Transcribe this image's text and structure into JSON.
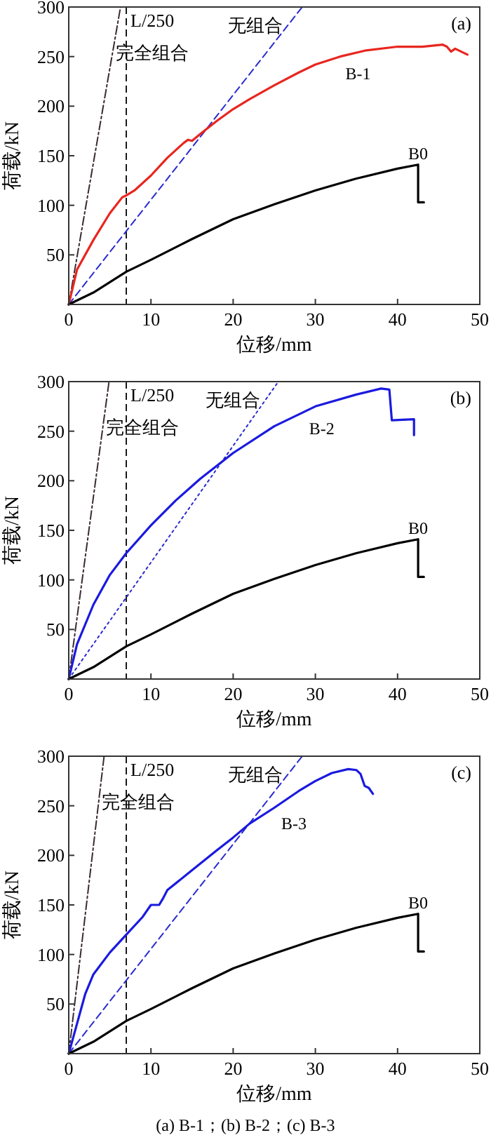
{
  "chart_data": [
    {
      "type": "line",
      "xlabel": "位移/mm",
      "ylabel": "荷载/kN",
      "xlim": [
        0,
        50
      ],
      "ylim": [
        0,
        300
      ],
      "xticks": [
        0,
        10,
        20,
        30,
        40,
        50
      ],
      "yticks": [
        50,
        100,
        150,
        200,
        250,
        300
      ],
      "grid": false,
      "marker": "none",
      "annotations": [
        "(a)"
      ],
      "ref_lines": [
        {
          "axis": "x",
          "value": 7,
          "label": "L/250",
          "color": "#000000",
          "line_style": "dashed"
        }
      ],
      "series": [
        {
          "name": "完全组合",
          "color": "#3a2a35",
          "line_style": "dashdot",
          "x": [
            0,
            6.3
          ],
          "values": [
            0,
            300
          ]
        },
        {
          "name": "无组合",
          "color": "#2a2ad0",
          "line_style": "dashed",
          "x": [
            0,
            28.4
          ],
          "values": [
            0,
            300
          ]
        },
        {
          "name": "B-1",
          "color": "#e8261f",
          "line_style": "solid",
          "x": [
            0,
            1,
            3,
            5,
            6.5,
            7,
            8,
            10,
            12,
            14,
            14.5,
            15,
            16,
            18,
            20,
            22,
            25,
            28,
            30,
            33,
            36,
            40,
            43,
            45.5,
            46,
            46.5,
            47,
            48.5
          ],
          "values": [
            0,
            35,
            65,
            92,
            108,
            110,
            115,
            130,
            148,
            163,
            166,
            165,
            172,
            185,
            197,
            207,
            221,
            234,
            242,
            250,
            256,
            260,
            260,
            262,
            260,
            255,
            258,
            252
          ]
        },
        {
          "name": "B0",
          "color": "#000000",
          "line_style": "solid",
          "x": [
            0,
            3,
            7,
            10,
            15,
            20,
            25,
            30,
            35,
            40,
            42.5,
            42.5,
            43.2
          ],
          "values": [
            0,
            12,
            33,
            45,
            66,
            86,
            101,
            115,
            127,
            137,
            141,
            103,
            103
          ]
        }
      ]
    },
    {
      "type": "line",
      "xlabel": "位移/mm",
      "ylabel": "荷载/kN",
      "xlim": [
        0,
        50
      ],
      "ylim": [
        0,
        300
      ],
      "xticks": [
        0,
        10,
        20,
        30,
        40,
        50
      ],
      "yticks": [
        50,
        100,
        150,
        200,
        250,
        300
      ],
      "grid": false,
      "marker": "none",
      "annotations": [
        "(b)"
      ],
      "ref_lines": [
        {
          "axis": "x",
          "value": 7,
          "label": "L/250",
          "color": "#000000",
          "line_style": "dashed"
        }
      ],
      "series": [
        {
          "name": "完全组合",
          "color": "#3a2a35",
          "line_style": "dashdot",
          "x": [
            0,
            4.9
          ],
          "values": [
            0,
            300
          ]
        },
        {
          "name": "无组合",
          "color": "#2a2ad0",
          "line_style": "dotted",
          "x": [
            0,
            25.5
          ],
          "values": [
            0,
            300
          ]
        },
        {
          "name": "B-2",
          "color": "#1a1adf",
          "line_style": "solid",
          "x": [
            0,
            1,
            3,
            5,
            7,
            10,
            13,
            16,
            20,
            25,
            30,
            35,
            38,
            39,
            39.3,
            42,
            42
          ],
          "values": [
            0,
            35,
            75,
            105,
            127,
            155,
            180,
            202,
            228,
            255,
            275,
            287,
            293,
            292,
            261,
            262,
            246
          ]
        },
        {
          "name": "B0",
          "color": "#000000",
          "line_style": "solid",
          "x": [
            0,
            3,
            7,
            10,
            15,
            20,
            25,
            30,
            35,
            40,
            42.5,
            42.5,
            43.2
          ],
          "values": [
            0,
            12,
            33,
            45,
            66,
            86,
            101,
            115,
            127,
            137,
            141,
            103,
            103
          ]
        }
      ]
    },
    {
      "type": "line",
      "xlabel": "位移/mm",
      "ylabel": "荷载/kN",
      "xlim": [
        0,
        50
      ],
      "ylim": [
        0,
        300
      ],
      "xticks": [
        0,
        10,
        20,
        30,
        40,
        50
      ],
      "yticks": [
        50,
        100,
        150,
        200,
        250,
        300
      ],
      "grid": false,
      "marker": "none",
      "annotations": [
        "(c)",
        "(a) B-1；(b) B-2；(c) B-3"
      ],
      "ref_lines": [
        {
          "axis": "x",
          "value": 7,
          "label": "L/250",
          "color": "#000000",
          "line_style": "dashed"
        }
      ],
      "series": [
        {
          "name": "完全组合",
          "color": "#3a2a35",
          "line_style": "dashdot",
          "x": [
            0,
            4.3
          ],
          "values": [
            0,
            300
          ]
        },
        {
          "name": "无组合",
          "color": "#2a2ad0",
          "line_style": "dashed",
          "x": [
            0,
            28.4
          ],
          "values": [
            0,
            300
          ]
        },
        {
          "name": "B-3",
          "color": "#1a1adf",
          "line_style": "solid",
          "x": [
            0,
            1,
            2,
            3,
            5,
            7,
            9,
            10,
            11,
            11.5,
            12,
            15,
            18,
            20,
            22,
            25,
            28,
            30,
            32,
            34,
            35,
            35.5,
            36,
            36.5,
            37
          ],
          "values": [
            0,
            30,
            60,
            80,
            102,
            120,
            138,
            150,
            150,
            157,
            165,
            185,
            205,
            218,
            232,
            248,
            265,
            275,
            283,
            287,
            286,
            282,
            270,
            268,
            262
          ]
        },
        {
          "name": "B0",
          "color": "#000000",
          "line_style": "solid",
          "x": [
            0,
            3,
            7,
            10,
            15,
            20,
            25,
            30,
            35,
            40,
            42.5,
            42.5,
            43.2
          ],
          "values": [
            0,
            12,
            33,
            45,
            66,
            86,
            101,
            115,
            127,
            137,
            141,
            103,
            103
          ]
        }
      ]
    }
  ]
}
